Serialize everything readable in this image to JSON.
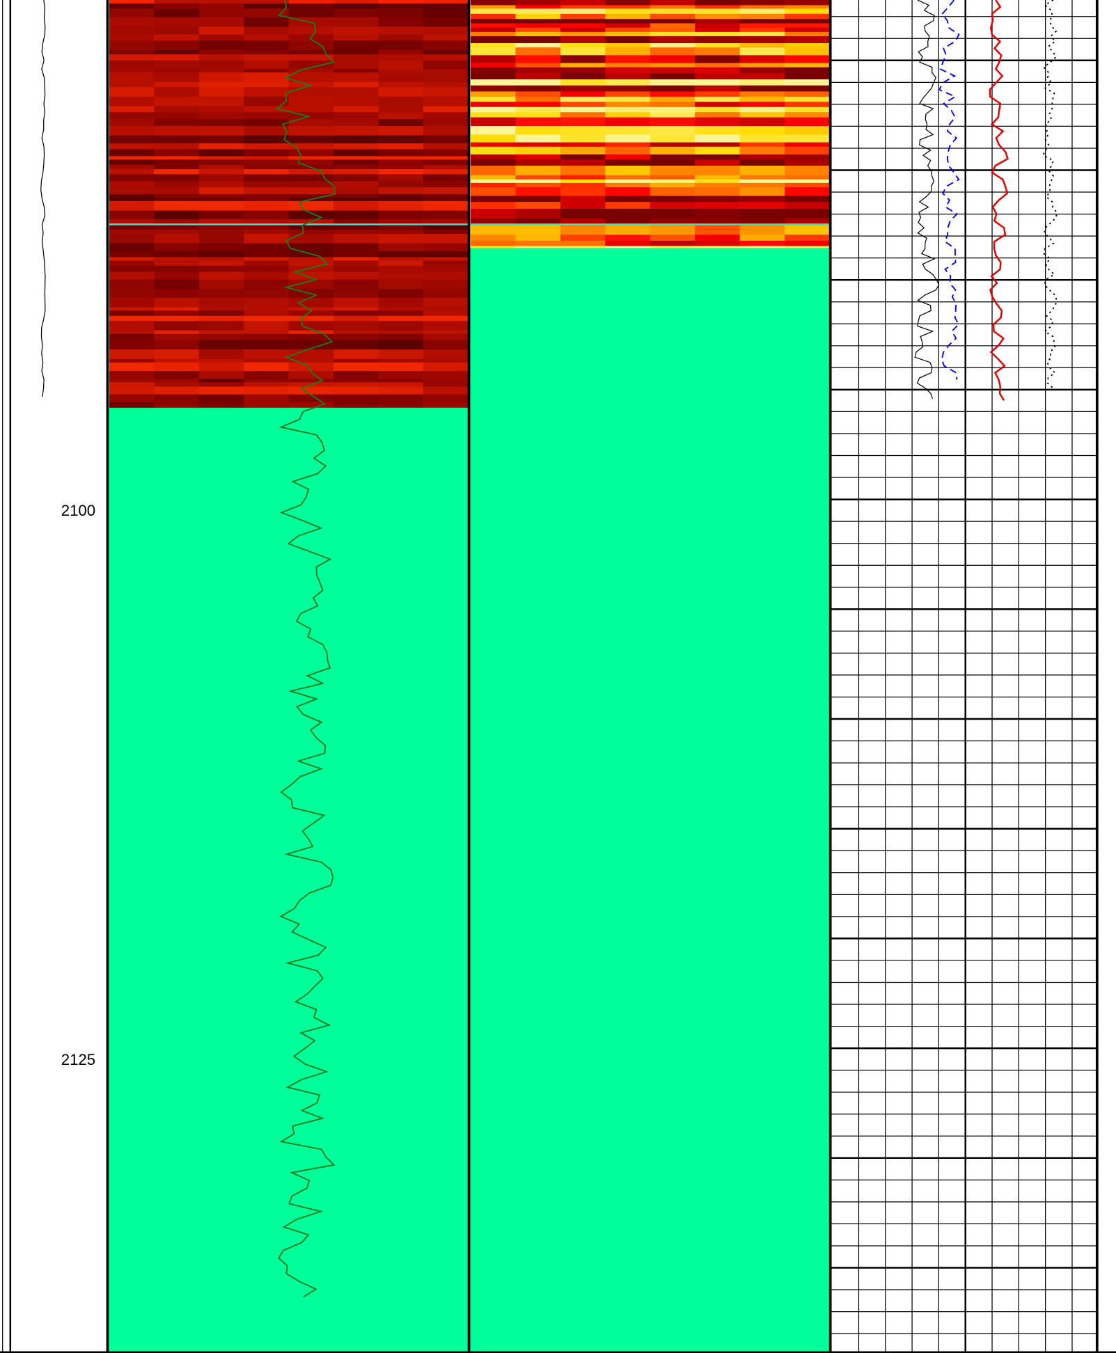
{
  "chart_data": {
    "type": "well-log",
    "ylim": [
      2076.7,
      2138.3
    ],
    "yticks": [
      2100,
      2125
    ]
  }
}
